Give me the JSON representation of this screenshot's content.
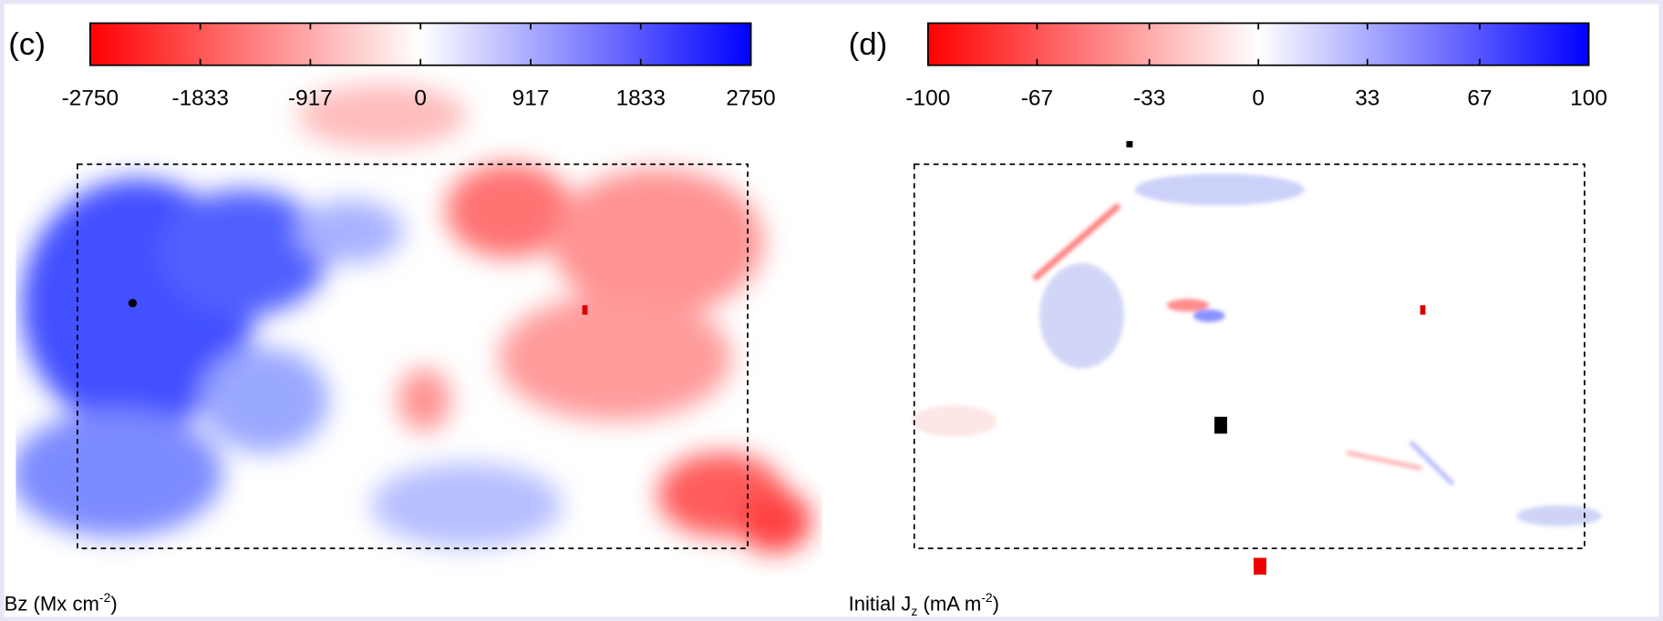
{
  "chart_data": [
    {
      "type": "heatmap",
      "panel_label": "(c)",
      "colorbar_label": [
        "Bz (Mx cm",
        "-2",
        ")"
      ],
      "colors": [
        "#ff0000",
        "#ffffff",
        "#0000ff"
      ],
      "colorbar_lim": [
        -2750,
        2750
      ],
      "colorbar_ticks": [
        -2750,
        -1833,
        -917,
        0,
        917,
        1833,
        2750
      ]
    },
    {
      "type": "heatmap",
      "panel_label": "(d)",
      "colorbar_label": [
        "Initial J",
        "z",
        " (mA m",
        "-2",
        ")"
      ],
      "colors": [
        "#ff0000",
        "#ffffff",
        "#0000ff"
      ],
      "colorbar_lim": [
        -100,
        100
      ],
      "colorbar_ticks": [
        -100,
        -67,
        -33,
        0,
        33,
        67,
        100
      ]
    }
  ]
}
